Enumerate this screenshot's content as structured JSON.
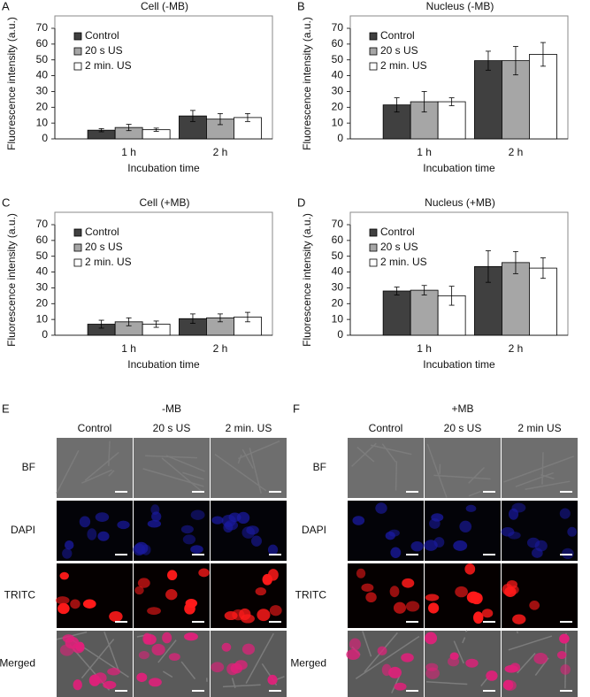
{
  "chart_data": [
    {
      "type": "bar",
      "panel_label": "A",
      "title": "Cell (-MB)",
      "xlabel": "Incubation time",
      "ylabel": "Fluorescence intensity (a.u.)",
      "categories": [
        "1 h",
        "2 h"
      ],
      "legend": "upper left",
      "series": [
        {
          "name": "Control",
          "color": "#404040",
          "values": [
            5.5,
            14.5
          ],
          "errors": [
            1,
            3.5
          ]
        },
        {
          "name": "20 s US",
          "color": "#a6a6a6",
          "values": [
            7.2,
            12.5
          ],
          "errors": [
            2,
            3.5
          ]
        },
        {
          "name": "2 min. US",
          "color": "#ffffff",
          "values": [
            5.8,
            13.5
          ],
          "errors": [
            1,
            2.5
          ]
        }
      ],
      "ylim": [
        0,
        70
      ],
      "yticks": [
        0,
        10,
        20,
        30,
        40,
        50,
        60,
        70
      ]
    },
    {
      "type": "bar",
      "panel_label": "B",
      "title": "Nucleus (-MB)",
      "xlabel": "Incubation time",
      "ylabel": "Fluorescence intensity (a.u.)",
      "categories": [
        "1 h",
        "2 h"
      ],
      "legend": "upper left",
      "series": [
        {
          "name": "Control",
          "color": "#404040",
          "values": [
            21.5,
            49.5
          ],
          "errors": [
            4.5,
            6
          ]
        },
        {
          "name": "20 s US",
          "color": "#a6a6a6",
          "values": [
            23.5,
            49.5
          ],
          "errors": [
            6.5,
            9
          ]
        },
        {
          "name": "2 min. US",
          "color": "#ffffff",
          "values": [
            23.5,
            53.5
          ],
          "errors": [
            2.5,
            7.5
          ]
        }
      ],
      "ylim": [
        0,
        70
      ],
      "yticks": [
        0,
        10,
        20,
        30,
        40,
        50,
        60,
        70
      ]
    },
    {
      "type": "bar",
      "panel_label": "C",
      "title": "Cell (+MB)",
      "xlabel": "Incubation time",
      "ylabel": "Fluorescence intensity (a.u.)",
      "categories": [
        "1 h",
        "2 h"
      ],
      "legend": "upper left",
      "series": [
        {
          "name": "Control",
          "color": "#404040",
          "values": [
            7,
            10.5
          ],
          "errors": [
            2.5,
            3
          ]
        },
        {
          "name": "20 s US",
          "color": "#a6a6a6",
          "values": [
            8.5,
            11
          ],
          "errors": [
            2.5,
            2.5
          ]
        },
        {
          "name": "2 min. US",
          "color": "#ffffff",
          "values": [
            7,
            11.5
          ],
          "errors": [
            2,
            3
          ]
        }
      ],
      "ylim": [
        0,
        70
      ],
      "yticks": [
        0,
        10,
        20,
        30,
        40,
        50,
        60,
        70
      ]
    },
    {
      "type": "bar",
      "panel_label": "D",
      "title": "Nucleus (+MB)",
      "xlabel": "Incubation time",
      "ylabel": "Fluorescence intensity (a.u.)",
      "categories": [
        "1 h",
        "2 h"
      ],
      "legend": "upper left",
      "series": [
        {
          "name": "Control",
          "color": "#404040",
          "values": [
            28,
            43.5
          ],
          "errors": [
            2.5,
            10
          ]
        },
        {
          "name": "20 s US",
          "color": "#a6a6a6",
          "values": [
            28.5,
            46
          ],
          "errors": [
            3,
            7
          ]
        },
        {
          "name": "2 min. US",
          "color": "#ffffff",
          "values": [
            25,
            42.5
          ],
          "errors": [
            6,
            6.5
          ]
        }
      ],
      "ylim": [
        0,
        70
      ],
      "yticks": [
        0,
        10,
        20,
        30,
        40,
        50,
        60,
        70
      ]
    }
  ],
  "image_panels": [
    {
      "label": "E",
      "title": "-MB",
      "columns": [
        "Control",
        "20 s US",
        "2 min. US"
      ],
      "rows": [
        "BF",
        "DAPI",
        "TRITC",
        "Merged"
      ]
    },
    {
      "label": "F",
      "title": "+MB",
      "columns": [
        "Control",
        "20 s US",
        "2 min US"
      ],
      "rows": [
        "BF",
        "DAPI",
        "TRITC",
        "Merged"
      ]
    }
  ]
}
